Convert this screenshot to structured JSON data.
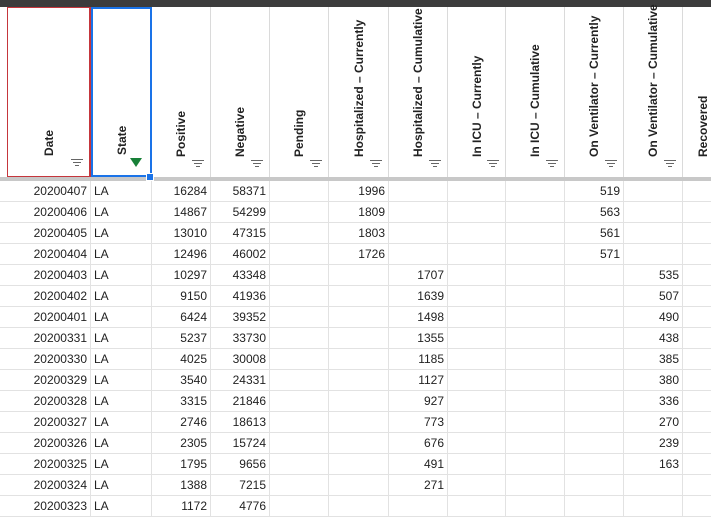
{
  "headers": [
    {
      "label": "Date",
      "filter": "normal"
    },
    {
      "label": "State",
      "filter": "active"
    },
    {
      "label": "Positive",
      "filter": "normal"
    },
    {
      "label": "Negative",
      "filter": "normal"
    },
    {
      "label": "Pending",
      "filter": "normal"
    },
    {
      "label": "Hospitalized – Currently",
      "filter": "normal"
    },
    {
      "label": "Hospitalized – Cumulative",
      "filter": "normal"
    },
    {
      "label": "In ICU – Currently",
      "filter": "normal"
    },
    {
      "label": "In ICU – Cumulative",
      "filter": "normal"
    },
    {
      "label": "On Ventilator – Currently",
      "filter": "normal"
    },
    {
      "label": "On Ventilator – Cumulative",
      "filter": "normal"
    },
    {
      "label": "Recovered",
      "filter": "none"
    }
  ],
  "rows": [
    [
      "20200407",
      "LA",
      "16284",
      "58371",
      "",
      "1996",
      "",
      "",
      "",
      "519",
      "",
      ""
    ],
    [
      "20200406",
      "LA",
      "14867",
      "54299",
      "",
      "1809",
      "",
      "",
      "",
      "563",
      "",
      ""
    ],
    [
      "20200405",
      "LA",
      "13010",
      "47315",
      "",
      "1803",
      "",
      "",
      "",
      "561",
      "",
      ""
    ],
    [
      "20200404",
      "LA",
      "12496",
      "46002",
      "",
      "1726",
      "",
      "",
      "",
      "571",
      "",
      ""
    ],
    [
      "20200403",
      "LA",
      "10297",
      "43348",
      "",
      "",
      "1707",
      "",
      "",
      "",
      "535",
      ""
    ],
    [
      "20200402",
      "LA",
      "9150",
      "41936",
      "",
      "",
      "1639",
      "",
      "",
      "",
      "507",
      ""
    ],
    [
      "20200401",
      "LA",
      "6424",
      "39352",
      "",
      "",
      "1498",
      "",
      "",
      "",
      "490",
      ""
    ],
    [
      "20200331",
      "LA",
      "5237",
      "33730",
      "",
      "",
      "1355",
      "",
      "",
      "",
      "438",
      ""
    ],
    [
      "20200330",
      "LA",
      "4025",
      "30008",
      "",
      "",
      "1185",
      "",
      "",
      "",
      "385",
      ""
    ],
    [
      "20200329",
      "LA",
      "3540",
      "24331",
      "",
      "",
      "1127",
      "",
      "",
      "",
      "380",
      ""
    ],
    [
      "20200328",
      "LA",
      "3315",
      "21846",
      "",
      "",
      "927",
      "",
      "",
      "",
      "336",
      ""
    ],
    [
      "20200327",
      "LA",
      "2746",
      "18613",
      "",
      "",
      "773",
      "",
      "",
      "",
      "270",
      ""
    ],
    [
      "20200326",
      "LA",
      "2305",
      "15724",
      "",
      "",
      "676",
      "",
      "",
      "",
      "239",
      ""
    ],
    [
      "20200325",
      "LA",
      "1795",
      "9656",
      "",
      "",
      "491",
      "",
      "",
      "",
      "163",
      ""
    ],
    [
      "20200324",
      "LA",
      "1388",
      "7215",
      "",
      "",
      "271",
      "",
      "",
      "",
      "",
      ""
    ],
    [
      "20200323",
      "LA",
      "1172",
      "4776",
      "",
      "",
      "",
      "",
      "",
      "",
      "",
      ""
    ]
  ]
}
